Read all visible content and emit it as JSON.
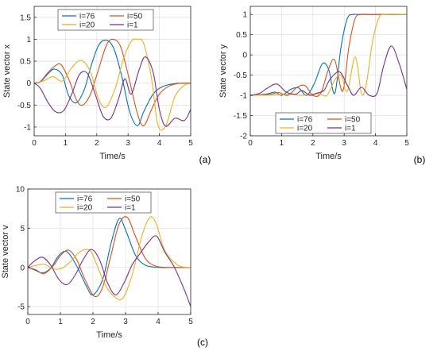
{
  "series_colors": {
    "i=76": "#0072bd",
    "i=50": "#d95319",
    "i=20": "#edb120",
    "i=1": "#7e2f8e"
  },
  "chart_data": [
    {
      "type": "line",
      "panel_label": "(a)",
      "xlabel": "Time/s",
      "ylabel": "State vector x",
      "xlim": [
        0,
        5
      ],
      "ylim": [
        -1.2,
        1.75
      ],
      "xticks": [
        "0",
        "1",
        "2",
        "3",
        "4",
        "5"
      ],
      "yticks": [
        "-1",
        "-0.5",
        "0",
        "0.5",
        "1",
        "1.5"
      ],
      "xtick_values": [
        0,
        1,
        2,
        3,
        4,
        5
      ],
      "ytick_values": [
        -1,
        -0.5,
        0,
        0.5,
        1,
        1.5
      ],
      "grid": true,
      "legend": {
        "placement": "top-center",
        "columns": 2,
        "order": [
          "i=76",
          "i=50",
          "i=20",
          "i=1"
        ]
      },
      "series": [
        {
          "name": "i=76",
          "x": [
            0,
            0.2,
            0.45,
            0.65,
            0.9,
            1.1,
            1.35,
            1.6,
            1.8,
            2.05,
            2.3,
            2.55,
            2.8,
            3.05,
            3.3,
            3.5,
            3.8,
            4.1,
            4.5,
            5.0
          ],
          "y": [
            0,
            0.03,
            0.22,
            0.32,
            0.18,
            -0.28,
            -0.45,
            -0.15,
            0.35,
            0.85,
            0.98,
            0.78,
            0.15,
            -0.65,
            -0.97,
            -0.65,
            -0.25,
            -0.08,
            -0.01,
            0
          ]
        },
        {
          "name": "i=50",
          "x": [
            0,
            0.2,
            0.45,
            0.65,
            0.85,
            1.1,
            1.35,
            1.55,
            1.8,
            2.05,
            2.3,
            2.5,
            2.75,
            3.0,
            3.3,
            3.5,
            3.75,
            4.0,
            4.3,
            4.6,
            5.0
          ],
          "y": [
            0,
            0.04,
            0.25,
            0.38,
            0.43,
            0.1,
            -0.38,
            -0.5,
            -0.25,
            0.3,
            0.85,
            1.0,
            0.85,
            0.2,
            -0.7,
            -0.97,
            -0.6,
            -0.25,
            -0.07,
            -0.01,
            0
          ]
        },
        {
          "name": "i=20",
          "x": [
            0,
            0.3,
            0.6,
            0.9,
            1.2,
            1.5,
            1.8,
            2.05,
            2.3,
            2.6,
            2.85,
            3.1,
            3.3,
            3.5,
            3.75,
            3.95,
            4.2,
            4.5,
            4.8,
            5.0
          ],
          "y": [
            0,
            0.05,
            0.15,
            0.05,
            0.35,
            0.52,
            0.25,
            -0.35,
            -0.55,
            -0.1,
            0.55,
            0.95,
            1.0,
            0.9,
            0.1,
            -0.95,
            -0.98,
            -0.3,
            -0.05,
            -0.01
          ]
        },
        {
          "name": "i=1",
          "x": [
            0,
            0.2,
            0.45,
            0.7,
            0.95,
            1.2,
            1.45,
            1.7,
            1.95,
            2.2,
            2.45,
            2.7,
            2.9,
            3.1,
            3.35,
            3.55,
            3.8,
            4.0,
            4.2,
            4.5,
            4.8,
            5.0
          ],
          "y": [
            0,
            -0.12,
            -0.45,
            -0.66,
            -0.62,
            -0.25,
            0.2,
            0.22,
            -0.25,
            -0.75,
            -0.8,
            -0.35,
            0.1,
            -0.25,
            0.3,
            0.6,
            0.25,
            -0.6,
            -0.98,
            -0.8,
            -0.85,
            -0.6
          ]
        }
      ]
    },
    {
      "type": "line",
      "panel_label": "(b)",
      "xlabel": "Time/s",
      "ylabel": "State vector y",
      "xlim": [
        0,
        5
      ],
      "ylim": [
        -2,
        1.2
      ],
      "xticks": [
        "0",
        "1",
        "2",
        "3",
        "4",
        "5"
      ],
      "yticks": [
        "-2",
        "-1.5",
        "-1",
        "-0.5",
        "0",
        "0.5",
        "1"
      ],
      "xtick_values": [
        0,
        1,
        2,
        3,
        4,
        5
      ],
      "ytick_values": [
        -2,
        -1.5,
        -1,
        -0.5,
        0,
        0.5,
        1
      ],
      "grid": true,
      "legend": {
        "placement": "bottom-center",
        "columns": 2,
        "order": [
          "i=76",
          "i=50",
          "i=20",
          "i=1"
        ]
      },
      "series": [
        {
          "name": "i=76",
          "x": [
            0,
            0.5,
            0.8,
            1.0,
            1.3,
            1.55,
            1.8,
            2.05,
            2.3,
            2.5,
            2.7,
            2.9,
            3.1,
            3.3,
            3.5,
            5.0
          ],
          "y": [
            -1,
            -0.97,
            -0.92,
            -1.0,
            -0.85,
            -0.82,
            -1.0,
            -0.7,
            -0.22,
            -0.35,
            -0.95,
            0.2,
            0.9,
            1.0,
            1.0,
            1.0
          ]
        },
        {
          "name": "i=50",
          "x": [
            0,
            0.6,
            0.9,
            1.2,
            1.5,
            1.75,
            2.0,
            2.25,
            2.5,
            2.7,
            2.95,
            3.15,
            3.35,
            3.55,
            3.75,
            5.0
          ],
          "y": [
            -1,
            -0.98,
            -0.93,
            -1.0,
            -0.8,
            -0.76,
            -1.0,
            -0.95,
            -0.35,
            -0.13,
            -0.9,
            0.2,
            0.9,
            1.0,
            1.0,
            1.0
          ]
        },
        {
          "name": "i=20",
          "x": [
            0,
            0.8,
            1.3,
            1.6,
            1.9,
            2.2,
            2.45,
            2.7,
            2.9,
            3.1,
            3.35,
            3.55,
            3.7,
            3.9,
            4.1,
            4.3,
            5.0
          ],
          "y": [
            -1,
            -0.99,
            -0.97,
            -1.0,
            -0.98,
            -0.96,
            -1.0,
            -0.62,
            -0.5,
            -0.9,
            -0.05,
            -0.95,
            -0.75,
            0.3,
            0.9,
            1.0,
            1.0
          ]
        },
        {
          "name": "i=1",
          "x": [
            0,
            0.3,
            0.55,
            0.85,
            1.15,
            1.45,
            1.65,
            1.9,
            2.1,
            2.35,
            2.55,
            2.85,
            3.1,
            3.3,
            3.55,
            3.8,
            4.05,
            4.25,
            4.5,
            4.75,
            5.0
          ],
          "y": [
            -1,
            -0.95,
            -0.82,
            -0.72,
            -0.92,
            -0.97,
            -0.88,
            -1.0,
            -0.95,
            -0.88,
            -0.6,
            -0.42,
            -0.75,
            -1.0,
            -0.8,
            -1.0,
            -0.95,
            -0.3,
            0.22,
            -0.2,
            -0.85
          ]
        }
      ]
    },
    {
      "type": "line",
      "panel_label": "(c)",
      "xlabel": "Time/s",
      "ylabel": "State vector v",
      "xlim": [
        0,
        5
      ],
      "ylim": [
        -6,
        10
      ],
      "xticks": [
        "0",
        "1",
        "2",
        "3",
        "4",
        "5"
      ],
      "yticks": [
        "-5",
        "0",
        "5",
        "10"
      ],
      "xtick_values": [
        0,
        1,
        2,
        3,
        4,
        5
      ],
      "ytick_values": [
        -5,
        0,
        5,
        10
      ],
      "grid": true,
      "legend": {
        "placement": "top-center",
        "columns": 2,
        "order": [
          "i=76",
          "i=50",
          "i=20",
          "i=1"
        ]
      },
      "series": [
        {
          "name": "i=76",
          "x": [
            0,
            0.2,
            0.45,
            0.7,
            0.95,
            1.2,
            1.5,
            1.8,
            2.0,
            2.3,
            2.55,
            2.8,
            3.0,
            3.3,
            3.6,
            4.0,
            4.4,
            5.0
          ],
          "y": [
            0,
            -0.3,
            -0.7,
            -0.1,
            1.5,
            2.0,
            0.2,
            -2.4,
            -3.5,
            -1.5,
            3.0,
            6.2,
            4.8,
            1.6,
            0.3,
            0,
            0,
            0
          ]
        },
        {
          "name": "i=50",
          "x": [
            0,
            0.25,
            0.5,
            0.8,
            1.0,
            1.25,
            1.5,
            1.75,
            2.05,
            2.3,
            2.55,
            2.8,
            3.05,
            3.3,
            3.6,
            3.9,
            4.3,
            5.0
          ],
          "y": [
            0,
            -0.3,
            -0.8,
            0.3,
            1.5,
            2.2,
            1.0,
            -1.5,
            -3.7,
            -2.5,
            1.5,
            5.5,
            6.4,
            4.0,
            1.2,
            0.2,
            0,
            0
          ]
        },
        {
          "name": "i=20",
          "x": [
            0,
            0.2,
            0.5,
            0.8,
            1.05,
            1.35,
            1.6,
            1.9,
            2.1,
            2.35,
            2.6,
            2.9,
            3.2,
            3.5,
            3.75,
            3.95,
            4.2,
            4.6,
            5.0
          ],
          "y": [
            0,
            0.2,
            0.4,
            -0.2,
            -0.1,
            0.9,
            2.0,
            2.2,
            0.5,
            -2.0,
            -3.5,
            -4.0,
            -1.0,
            4.0,
            6.4,
            5.5,
            2.2,
            0.3,
            0
          ]
        },
        {
          "name": "i=1",
          "x": [
            0,
            0.2,
            0.45,
            0.7,
            0.95,
            1.2,
            1.45,
            1.7,
            1.95,
            2.2,
            2.45,
            2.7,
            2.95,
            3.2,
            3.45,
            3.7,
            3.95,
            4.2,
            4.5,
            4.8,
            5.0
          ],
          "y": [
            0,
            0.8,
            1.3,
            0.3,
            -1.5,
            -2.2,
            -1.0,
            1.0,
            2.3,
            1.0,
            -2.0,
            -3.5,
            -2.0,
            0.3,
            1.8,
            3.2,
            4.0,
            2.0,
            0,
            -2.8,
            -5.0
          ]
        }
      ]
    }
  ]
}
